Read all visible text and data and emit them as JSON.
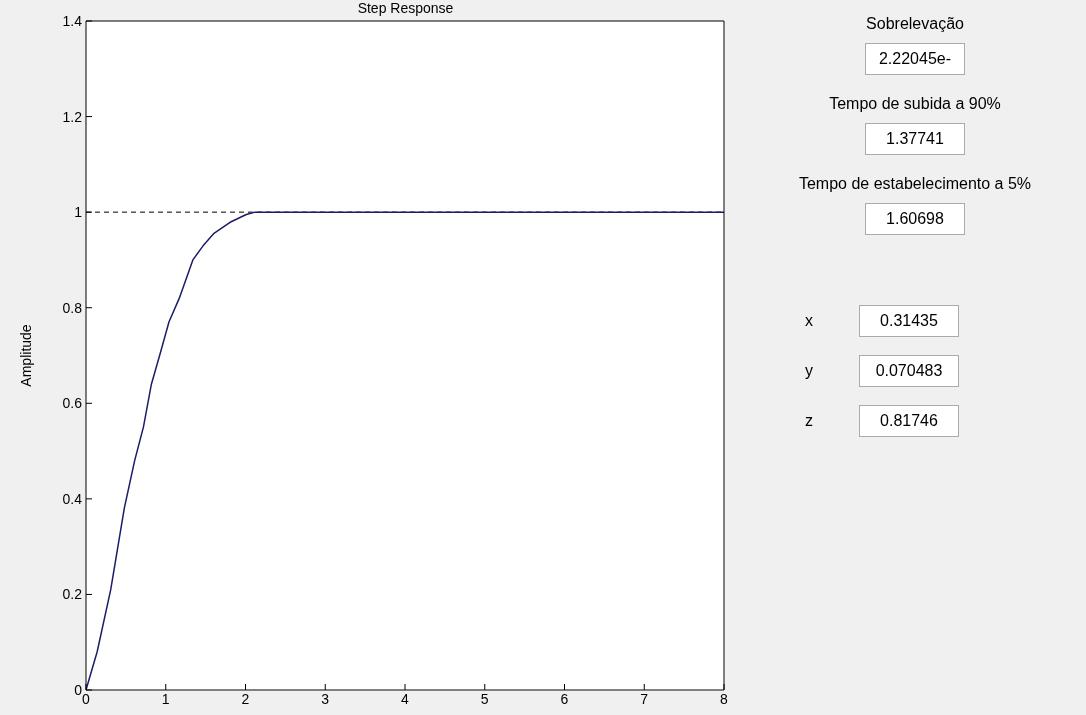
{
  "chart_data": {
    "type": "line",
    "title": "Step Response",
    "ylabel": "Amplitude",
    "x": [
      0,
      0.14,
      0.31,
      0.48,
      0.61,
      0.72,
      0.82,
      0.94,
      1.04,
      1.17,
      1.34,
      1.47,
      1.6,
      1.82,
      2.01,
      2.12,
      8
    ],
    "series": [
      {
        "color": "#1c1c6a",
        "values": [
          0,
          0.08,
          0.21,
          0.38,
          0.48,
          0.55,
          0.64,
          0.71,
          0.77,
          0.82,
          0.9,
          0.93,
          0.955,
          0.98,
          0.995,
          1,
          1
        ]
      }
    ],
    "xlim": [
      0,
      8
    ],
    "xticks": [
      0,
      1,
      2,
      3,
      4,
      5,
      6,
      7,
      8
    ],
    "ylim": [
      0,
      1.4
    ],
    "yticks": [
      0,
      0.2,
      0.4,
      0.6,
      0.8,
      1,
      1.2,
      1.4
    ],
    "ref_lines": [
      {
        "axis": "y",
        "value": 1,
        "color": "#000000",
        "line_style": "dashed"
      }
    ],
    "grid": false,
    "legend": false,
    "marker": "none",
    "line_style": "solid",
    "annotations": [
      "Sobrelevação",
      "2.22045e-",
      "Tempo de subida a 90%",
      "1.37741",
      "Tempo de estabelecimento a 5%",
      "1.60698",
      "x",
      "0.31435",
      "y",
      "0.070483",
      "z",
      "0.81746"
    ]
  }
}
